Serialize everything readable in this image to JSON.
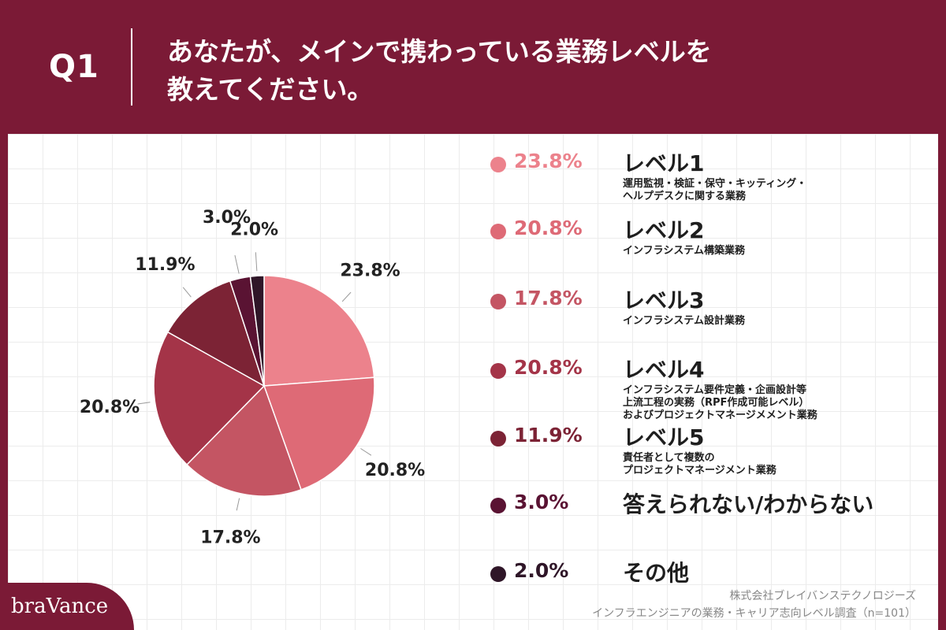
{
  "header": {
    "question_label": "Q1",
    "title_line1": "あなたが、メインで携わっている業務レベルを",
    "title_line2": "教えてください。"
  },
  "chart_data": {
    "type": "pie",
    "slices": [
      {
        "label": "23.8%",
        "value": 23.8,
        "color": "#ec828c"
      },
      {
        "label": "20.8%",
        "value": 20.8,
        "color": "#de6a76"
      },
      {
        "label": "17.8%",
        "value": 17.8,
        "color": "#c45563"
      },
      {
        "label": "20.8%",
        "value": 20.8,
        "color": "#a43448"
      },
      {
        "label": "11.9%",
        "value": 11.9,
        "color": "#7c2335"
      },
      {
        "label": "3.0%",
        "value": 3.0,
        "color": "#5a1333"
      },
      {
        "label": "2.0%",
        "value": 2.0,
        "color": "#2f1628"
      }
    ]
  },
  "legend": [
    {
      "pct": "23.8%",
      "name": "レベル1",
      "desc": "運用監視・検証・保守・キッティング・\nヘルプデスクに関する業務",
      "color": "#ec828c"
    },
    {
      "pct": "20.8%",
      "name": "レベル2",
      "desc": "インフラシステム構築業務",
      "color": "#de6a76"
    },
    {
      "pct": "17.8%",
      "name": "レベル3",
      "desc": "インフラシステム設計業務",
      "color": "#c45563"
    },
    {
      "pct": "20.8%",
      "name": "レベル4",
      "desc": "インフラシステム要件定義・企画設計等\n上流工程の実務（RPF作成可能レベル）\nおよびプロジェクトマネージメメント業務",
      "color": "#a43448"
    },
    {
      "pct": "11.9%",
      "name": "レベル5",
      "desc": "責任者として複数の\nプロジェクトマネージメント業務",
      "color": "#7c2335"
    },
    {
      "pct": "3.0%",
      "name": "答えられない/わからない",
      "desc": "",
      "color": "#5a1333"
    },
    {
      "pct": "2.0%",
      "name": "その他",
      "desc": "",
      "color": "#2f1628"
    }
  ],
  "source": {
    "company": "株式会社ブレイバンステクノロジーズ",
    "survey": "インフラエンジニアの業務・キャリア志向レベル調査（n=101）"
  },
  "brand": {
    "logo": "braVance"
  },
  "colors": {
    "background": "#7b1a36",
    "panel": "#ffffff"
  }
}
